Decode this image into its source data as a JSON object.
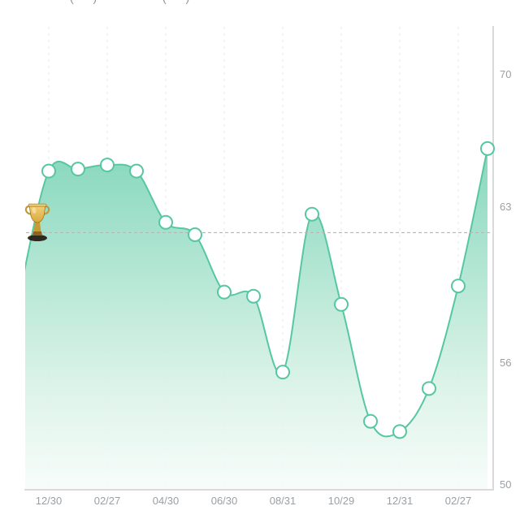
{
  "header": {
    "clipped_text_left": "( )",
    "clipped_text_right": "( )"
  },
  "chart_data": {
    "type": "area",
    "title": "",
    "xlabel": "",
    "ylabel": "",
    "x_tick_labels": [
      "12/30",
      "02/27",
      "04/30",
      "06/30",
      "08/31",
      "10/29",
      "12/31",
      "02/27"
    ],
    "y_tick_labels": [
      "70",
      "63",
      "56",
      "50"
    ],
    "y_axis_side": "right",
    "ylim": [
      49.8,
      72.4
    ],
    "grid": "vertical-dashed",
    "legend_position": "none",
    "series": [
      {
        "name": "value",
        "values": [
          59.3,
          65.3,
          65.4,
          65.6,
          65.3,
          62.8,
          62.2,
          59.4,
          59.2,
          55.5,
          63.2,
          58.8,
          53.1,
          52.6,
          54.7,
          59.7,
          66.4
        ]
      }
    ],
    "markers_from_index": 1,
    "x_tick_point_indices": [
      1,
      3,
      5,
      7,
      9,
      11,
      13,
      15
    ],
    "reference_line_value": 62.3,
    "annotations": [
      {
        "icon": "trophy-icon",
        "near_point_index": 0
      }
    ],
    "colors": {
      "line": "#57c7a3",
      "fill_top": "#7ed5b8",
      "fill_bottom": "#f7fcfa",
      "grid": "#e5e7e9",
      "axis": "#d8dadc",
      "reference_line": "#b3b7b6",
      "tick_text": "#9aa0a5",
      "marker_fill": "#ffffff",
      "trophy_gold": "#d9a93c",
      "trophy_gold_light": "#f2d27c",
      "trophy_base": "#241a10"
    }
  }
}
